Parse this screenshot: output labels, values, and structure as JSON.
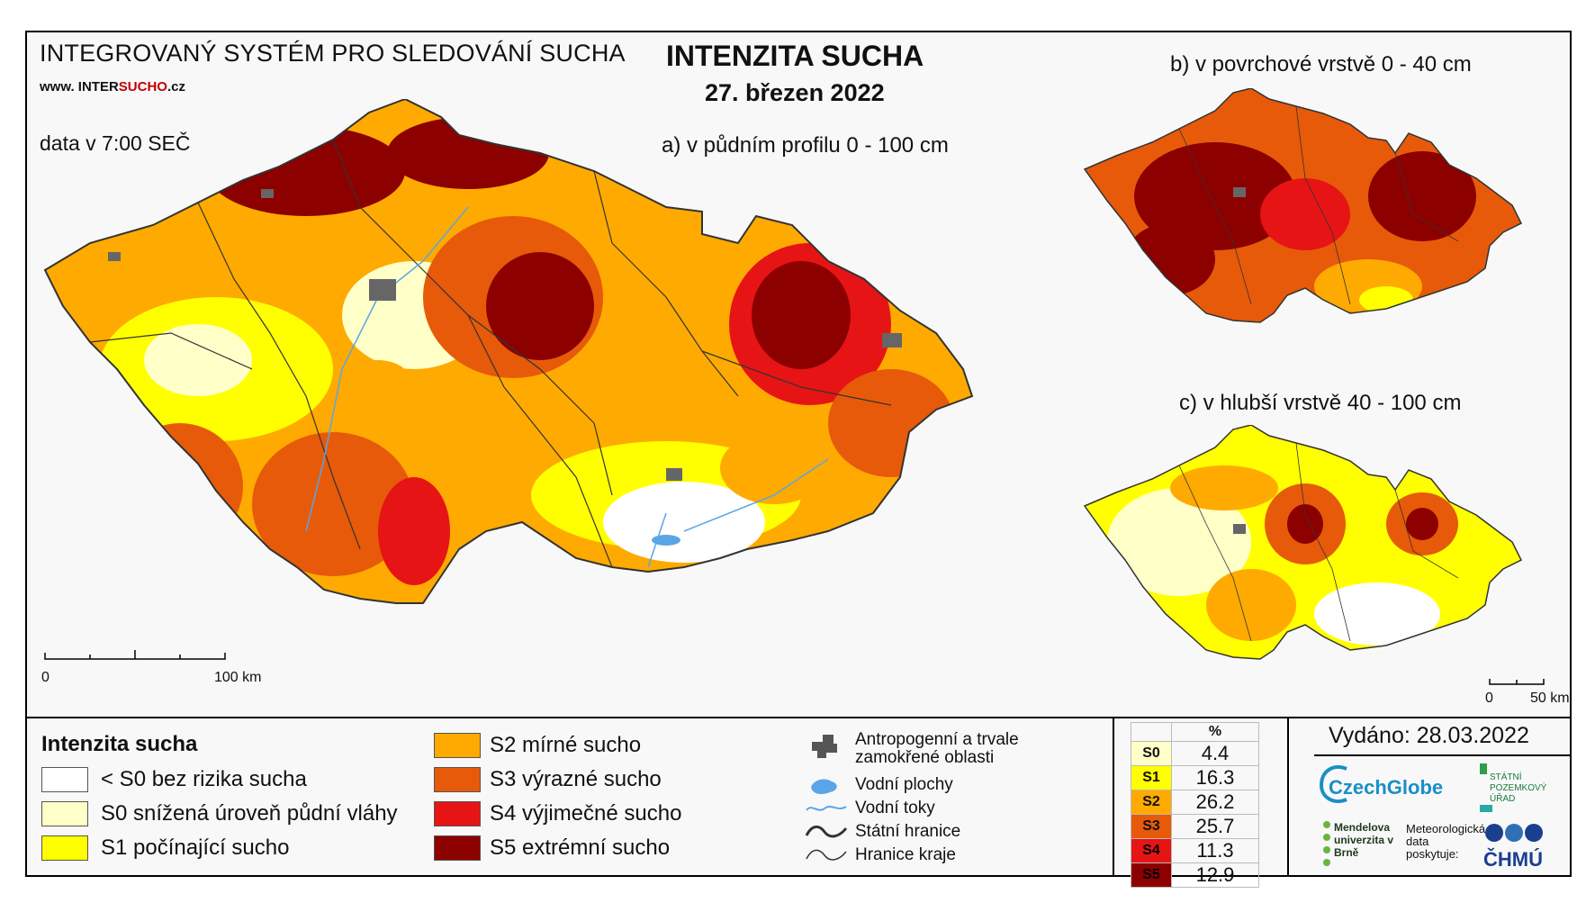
{
  "header": {
    "system_title": "INTEGROVANÝ SYSTÉM PRO SLEDOVÁNÍ SUCHA",
    "website_prefix": "www. INTER",
    "website_highlight": "SUCHO",
    "website_suffix": ".cz",
    "data_time": "data v 7:00 SEČ",
    "main_title": "INTENZITA SUCHA",
    "date": "27. březen 2022"
  },
  "maps": {
    "a_title": "a) v půdním profilu 0 - 100 cm",
    "b_title": "b) v povrchové vrstvě 0 - 40 cm",
    "c_title": "c) v hlubší vrstvě 40 - 100 cm",
    "scale_main": {
      "zero": "0",
      "end": "100 km"
    },
    "scale_small": {
      "zero": "0",
      "end": "50 km"
    }
  },
  "legend": {
    "title": "Intenzita sucha",
    "classes": [
      {
        "code": "nodrought",
        "label": "< S0 bez rizika sucha",
        "color": "#ffffff"
      },
      {
        "code": "S0",
        "label": "S0 snížená úroveň půdní vláhy",
        "color": "#ffffc8"
      },
      {
        "code": "S1",
        "label": "S1 počínající sucho",
        "color": "#ffff00"
      },
      {
        "code": "S2",
        "label": "S2 mírné sucho",
        "color": "#ffaa00"
      },
      {
        "code": "S3",
        "label": "S3 výrazné sucho",
        "color": "#e65a0a"
      },
      {
        "code": "S4",
        "label": "S4 výjimečné sucho",
        "color": "#e61414"
      },
      {
        "code": "S5",
        "label": "S5 extrémní sucho",
        "color": "#8c0000"
      }
    ],
    "symbols": {
      "anthropogenic": "Antropogenní a trvale zamokřené oblasti",
      "water_bodies": "Vodní plochy",
      "rivers": "Vodní toky",
      "state_border": "Státní hranice",
      "region_border": "Hranice kraje"
    }
  },
  "stats": {
    "header": "%",
    "rows": [
      {
        "code": "S0",
        "value": "4.4",
        "color": "#ffffc8"
      },
      {
        "code": "S1",
        "value": "16.3",
        "color": "#ffff00"
      },
      {
        "code": "S2",
        "value": "26.2",
        "color": "#ffaa00"
      },
      {
        "code": "S3",
        "value": "25.7",
        "color": "#e65a0a"
      },
      {
        "code": "S4",
        "value": "11.3",
        "color": "#e61414"
      },
      {
        "code": "S5",
        "value": "12.9",
        "color": "#8c0000"
      }
    ]
  },
  "footer": {
    "issued": "Vydáno: 28.03.2022",
    "logo_czechglobe": "CzechGlobe",
    "logo_spu": "STÁTNÍ POZEMKOVÝ ÚŘAD",
    "logo_mendel": "Mendelova univerzita v Brně",
    "logo_meteo": "Meteorologická data poskytuje:",
    "logo_chmu": "ČHMÚ"
  }
}
